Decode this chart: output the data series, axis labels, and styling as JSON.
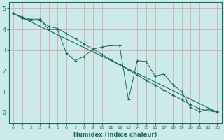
{
  "xlabel": "Humidex (Indice chaleur)",
  "xlim": [
    -0.5,
    23.5
  ],
  "ylim": [
    -0.5,
    5.3
  ],
  "xticks": [
    0,
    1,
    2,
    3,
    4,
    5,
    6,
    7,
    8,
    9,
    10,
    11,
    12,
    13,
    14,
    15,
    16,
    17,
    18,
    19,
    20,
    21,
    22,
    23
  ],
  "yticks": [
    0,
    1,
    2,
    3,
    4,
    5
  ],
  "bg_color": "#cdeaea",
  "line_color": "#1a6b5a",
  "grid_color": "#d4a0a0",
  "trend_x": [
    0,
    23
  ],
  "trend_y": [
    4.78,
    0.02
  ],
  "smooth_x": [
    0,
    1,
    2,
    3,
    4,
    5,
    6,
    7,
    8,
    9,
    10,
    11,
    12,
    13,
    14,
    15,
    16,
    17,
    18,
    19,
    20,
    21,
    22,
    23
  ],
  "smooth_y": [
    4.78,
    4.55,
    4.45,
    4.45,
    4.15,
    4.05,
    3.8,
    3.55,
    3.3,
    3.05,
    2.8,
    2.55,
    2.3,
    2.05,
    1.8,
    1.55,
    1.32,
    1.08,
    0.85,
    0.62,
    0.38,
    0.18,
    0.08,
    0.02
  ],
  "jagged_x": [
    0,
    1,
    2,
    3,
    4,
    5,
    6,
    7,
    8,
    9,
    10,
    11,
    12,
    13,
    14,
    15,
    16,
    17,
    18,
    19,
    20,
    21,
    22,
    23
  ],
  "jagged_y": [
    4.78,
    4.6,
    4.5,
    4.5,
    4.0,
    4.0,
    2.85,
    2.5,
    2.7,
    3.05,
    3.15,
    3.22,
    3.22,
    0.62,
    2.5,
    2.45,
    1.75,
    1.85,
    1.35,
    1.0,
    0.25,
    0.05,
    0.15,
    0.05
  ]
}
